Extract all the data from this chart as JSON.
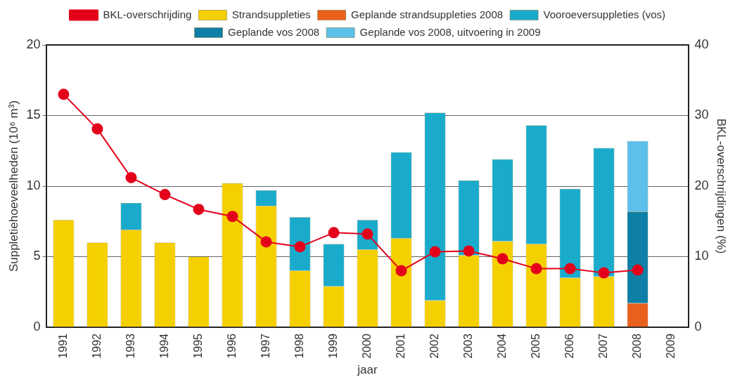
{
  "chart_data": {
    "type": "bar",
    "stacked": true,
    "xlabel": "jaar",
    "ylabel": "Suppletiehoeveelheden (10⁶ m³)",
    "y2label": "BKL-overschrijdingen (%)",
    "categories": [
      "1991",
      "1992",
      "1993",
      "1994",
      "1995",
      "1996",
      "1997",
      "1998",
      "1999",
      "2000",
      "2001",
      "2002",
      "2003",
      "2004",
      "2005",
      "2006",
      "2007",
      "2008",
      "2009"
    ],
    "ylim": [
      0,
      20
    ],
    "yticks": [
      0,
      5,
      10,
      15,
      20
    ],
    "y2lim": [
      0,
      40
    ],
    "y2ticks": [
      0,
      10,
      20,
      30,
      40
    ],
    "grid": "y",
    "legend": "top",
    "series": [
      {
        "name": "Strandsuppleties",
        "color": "#f5d000",
        "values": [
          7.6,
          6.0,
          6.9,
          6.0,
          5.0,
          10.2,
          8.6,
          4.0,
          2.9,
          5.5,
          6.3,
          1.9,
          5.1,
          6.1,
          5.9,
          3.5,
          3.6,
          null,
          null
        ]
      },
      {
        "name": "Geplande strandsuppleties 2008",
        "color": "#e8601c",
        "values": [
          null,
          null,
          null,
          null,
          null,
          null,
          null,
          null,
          null,
          null,
          null,
          null,
          null,
          null,
          null,
          null,
          null,
          1.7,
          null
        ]
      },
      {
        "name": "Vooroeversuppleties (vos)",
        "color": "#1aabcc",
        "values": [
          null,
          null,
          1.9,
          null,
          null,
          null,
          1.1,
          3.8,
          3.0,
          2.1,
          6.1,
          13.3,
          5.3,
          5.8,
          8.4,
          6.3,
          9.1,
          null,
          null
        ]
      },
      {
        "name": "Geplande vos 2008",
        "color": "#0e7fa6",
        "values": [
          null,
          null,
          null,
          null,
          null,
          null,
          null,
          null,
          null,
          null,
          null,
          null,
          null,
          null,
          null,
          null,
          null,
          6.5,
          null
        ]
      },
      {
        "name": "Geplande vos 2008, uitvoering in 2009",
        "color": "#5cc0ea",
        "values": [
          null,
          null,
          null,
          null,
          null,
          null,
          null,
          null,
          null,
          null,
          null,
          null,
          null,
          null,
          null,
          null,
          null,
          5.0,
          null
        ]
      },
      {
        "name": "BKL-overschrijding",
        "type": "line",
        "axis": "y2",
        "color": "#e3001b",
        "marker": "circle",
        "values": [
          33.0,
          28.1,
          21.2,
          18.8,
          16.7,
          15.7,
          12.1,
          11.4,
          13.4,
          13.2,
          8.0,
          10.7,
          10.8,
          9.7,
          8.3,
          8.3,
          7.7,
          8.1,
          null
        ]
      }
    ]
  }
}
